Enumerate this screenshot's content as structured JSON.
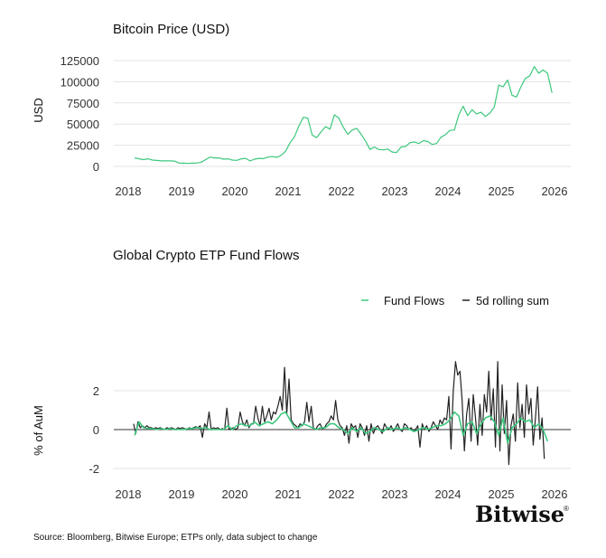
{
  "chart_data": [
    {
      "type": "line",
      "title": "Bitcoin Price (USD)",
      "xlabel": "",
      "ylabel": "USD",
      "xlim": [
        2018,
        2026
      ],
      "ylim": [
        0,
        125000
      ],
      "xticks": [
        "2018",
        "2019",
        "2020",
        "2021",
        "2022",
        "2023",
        "2024",
        "2025",
        "2026"
      ],
      "yticks": [
        "0",
        "25000",
        "50000",
        "75000",
        "100000",
        "125000"
      ],
      "grid": "horizontal",
      "x_start": 2018.12,
      "x_step_years": 0.08333,
      "series": [
        {
          "color": "#3cc87e",
          "values": [
            10000,
            9000,
            8000,
            9000,
            7500,
            7000,
            6500,
            6500,
            6500,
            6300,
            4000,
            3800,
            3500,
            3800,
            4000,
            5000,
            8000,
            11000,
            10000,
            10000,
            8500,
            9000,
            7500,
            7200,
            9000,
            9500,
            6500,
            8500,
            9500,
            9200,
            11000,
            11500,
            10800,
            13000,
            18000,
            28000,
            35000,
            48000,
            58000,
            57000,
            37000,
            34000,
            41000,
            47000,
            44000,
            61000,
            57000,
            46000,
            38000,
            43000,
            45000,
            38000,
            30000,
            20000,
            23000,
            20000,
            19500,
            20500,
            17000,
            16500,
            23000,
            23500,
            28000,
            29000,
            27000,
            30500,
            29500,
            26000,
            27000,
            34500,
            37500,
            42500,
            43000,
            61000,
            71000,
            60000,
            67000,
            62000,
            64000,
            59000,
            63000,
            70000,
            96000,
            94000,
            102000,
            84000,
            82000,
            94000,
            104000,
            107000,
            118000,
            110000,
            114000,
            110000,
            87000
          ]
        }
      ]
    },
    {
      "type": "line",
      "title": "Global Crypto ETP Fund Flows",
      "xlabel": "",
      "ylabel": "% of AuM",
      "xlim": [
        2018,
        2026
      ],
      "ylim": [
        -2.5,
        3.5
      ],
      "xticks": [
        "2018",
        "2019",
        "2020",
        "2021",
        "2022",
        "2023",
        "2024",
        "2025",
        "2026"
      ],
      "yticks": [
        "-2",
        "0",
        "2"
      ],
      "grid": "horizontal",
      "legend": "top-right",
      "series": [
        {
          "name": "Fund Flows",
          "color": "#3cc87e",
          "x_start": 2018.12,
          "x_step_years": 0.08333,
          "values": [
            -0.3,
            0.4,
            0.1,
            0.05,
            0.05,
            0.0,
            0.05,
            0.0,
            0.05,
            0.0,
            0.0,
            0.0,
            0.05,
            0.05,
            0.1,
            0.05,
            0.1,
            0.0,
            0.0,
            0.0,
            0.0,
            0.2,
            0.0,
            0.2,
            0.3,
            0.2,
            0.2,
            0.4,
            0.2,
            0.3,
            0.4,
            0.3,
            0.5,
            0.8,
            0.9,
            0.5,
            0.1,
            0.1,
            0.3,
            0.2,
            0.1,
            0.0,
            0.1,
            0.1,
            0.3,
            0.3,
            0.1,
            0.0,
            -0.2,
            0.1,
            -0.1,
            0.1,
            -0.2,
            -0.1,
            0.1,
            0.0,
            -0.1,
            0.1,
            0.0,
            0.1,
            0.0,
            0.1,
            0.0,
            -0.1,
            0.0,
            0.1,
            0.0,
            0.1,
            0.2,
            0.2,
            0.3,
            0.5,
            0.9,
            0.7,
            -0.3,
            0.3,
            0.4,
            -0.2,
            0.3,
            0.6,
            0.7,
            0.4,
            -0.3,
            0.6,
            -0.7,
            0.1,
            0.3,
            0.6,
            0.4,
            0.5,
            0.1,
            0.3,
            0.0,
            -0.6
          ]
        },
        {
          "name": "5d rolling sum",
          "color": "#222222",
          "x_start": 2018.1,
          "x_step_years": 0.041667,
          "values": [
            0.3,
            -0.2,
            0.4,
            0.1,
            0.2,
            0.1,
            0.2,
            0.1,
            0.1,
            0.05,
            0.1,
            0.05,
            0.1,
            0.05,
            0.0,
            0.1,
            0.05,
            0.1,
            0.05,
            0.0,
            0.1,
            0.05,
            0.1,
            0.05,
            0.0,
            0.1,
            0.05,
            0.1,
            0.15,
            0.1,
            0.2,
            -0.4,
            0.3,
            0.1,
            0.9,
            0.0,
            0.1,
            0.05,
            0.1,
            0.0,
            0.05,
            0.0,
            1.1,
            0.0,
            0.05,
            0.1,
            0.0,
            0.1,
            0.9,
            0.4,
            0.2,
            0.5,
            0.1,
            0.3,
            0.3,
            1.2,
            0.6,
            0.2,
            1.2,
            0.4,
            0.7,
            1.1,
            0.5,
            0.9,
            0.8,
            1.2,
            1.7,
            1.0,
            3.2,
            0.8,
            2.6,
            0.5,
            0.3,
            0.2,
            0.1,
            0.3,
            0.2,
            0.4,
            1.4,
            0.4,
            1.2,
            0.1,
            0.0,
            0.2,
            0.3,
            0.05,
            0.1,
            0.3,
            0.4,
            0.7,
            0.5,
            1.5,
            0.5,
            0.2,
            0.1,
            -0.3,
            0.2,
            -0.7,
            0.3,
            0.1,
            0.2,
            -0.4,
            0.3,
            0.1,
            -0.3,
            0.2,
            -0.6,
            0.3,
            -0.2,
            0.1,
            0.2,
            0.0,
            -0.2,
            0.3,
            0.1,
            0.0,
            0.2,
            -0.1,
            0.1,
            0.3,
            0.0,
            -0.1,
            0.3,
            0.2,
            0.0,
            0.1,
            -0.1,
            0.0,
            0.2,
            -0.9,
            0.3,
            0.0,
            0.2,
            -0.1,
            0.1,
            0.4,
            0.2,
            0.0,
            0.5,
            0.3,
            0.6,
            0.5,
            1.7,
            -1.0,
            2.0,
            3.5,
            2.8,
            3.0,
            1.5,
            -1.1,
            0.8,
            1.6,
            -0.6,
            1.8,
            0.6,
            -0.8,
            1.3,
            -0.3,
            1.8,
            0.9,
            3.0,
            0.5,
            2.1,
            -0.9,
            3.5,
            -1.1,
            2.3,
            -0.2,
            1.5,
            -1.8,
            0.2,
            0.8,
            -0.6,
            2.4,
            0.1,
            1.3,
            -0.4,
            2.3,
            0.8,
            1.6,
            -0.8,
            0.6,
            2.2,
            -0.5,
            0.6,
            -1.5
          ]
        }
      ]
    }
  ],
  "source": "Source: Bloomberg, Bitwise Europe; ETPs only, data subject to change",
  "logo": "Bitwise"
}
